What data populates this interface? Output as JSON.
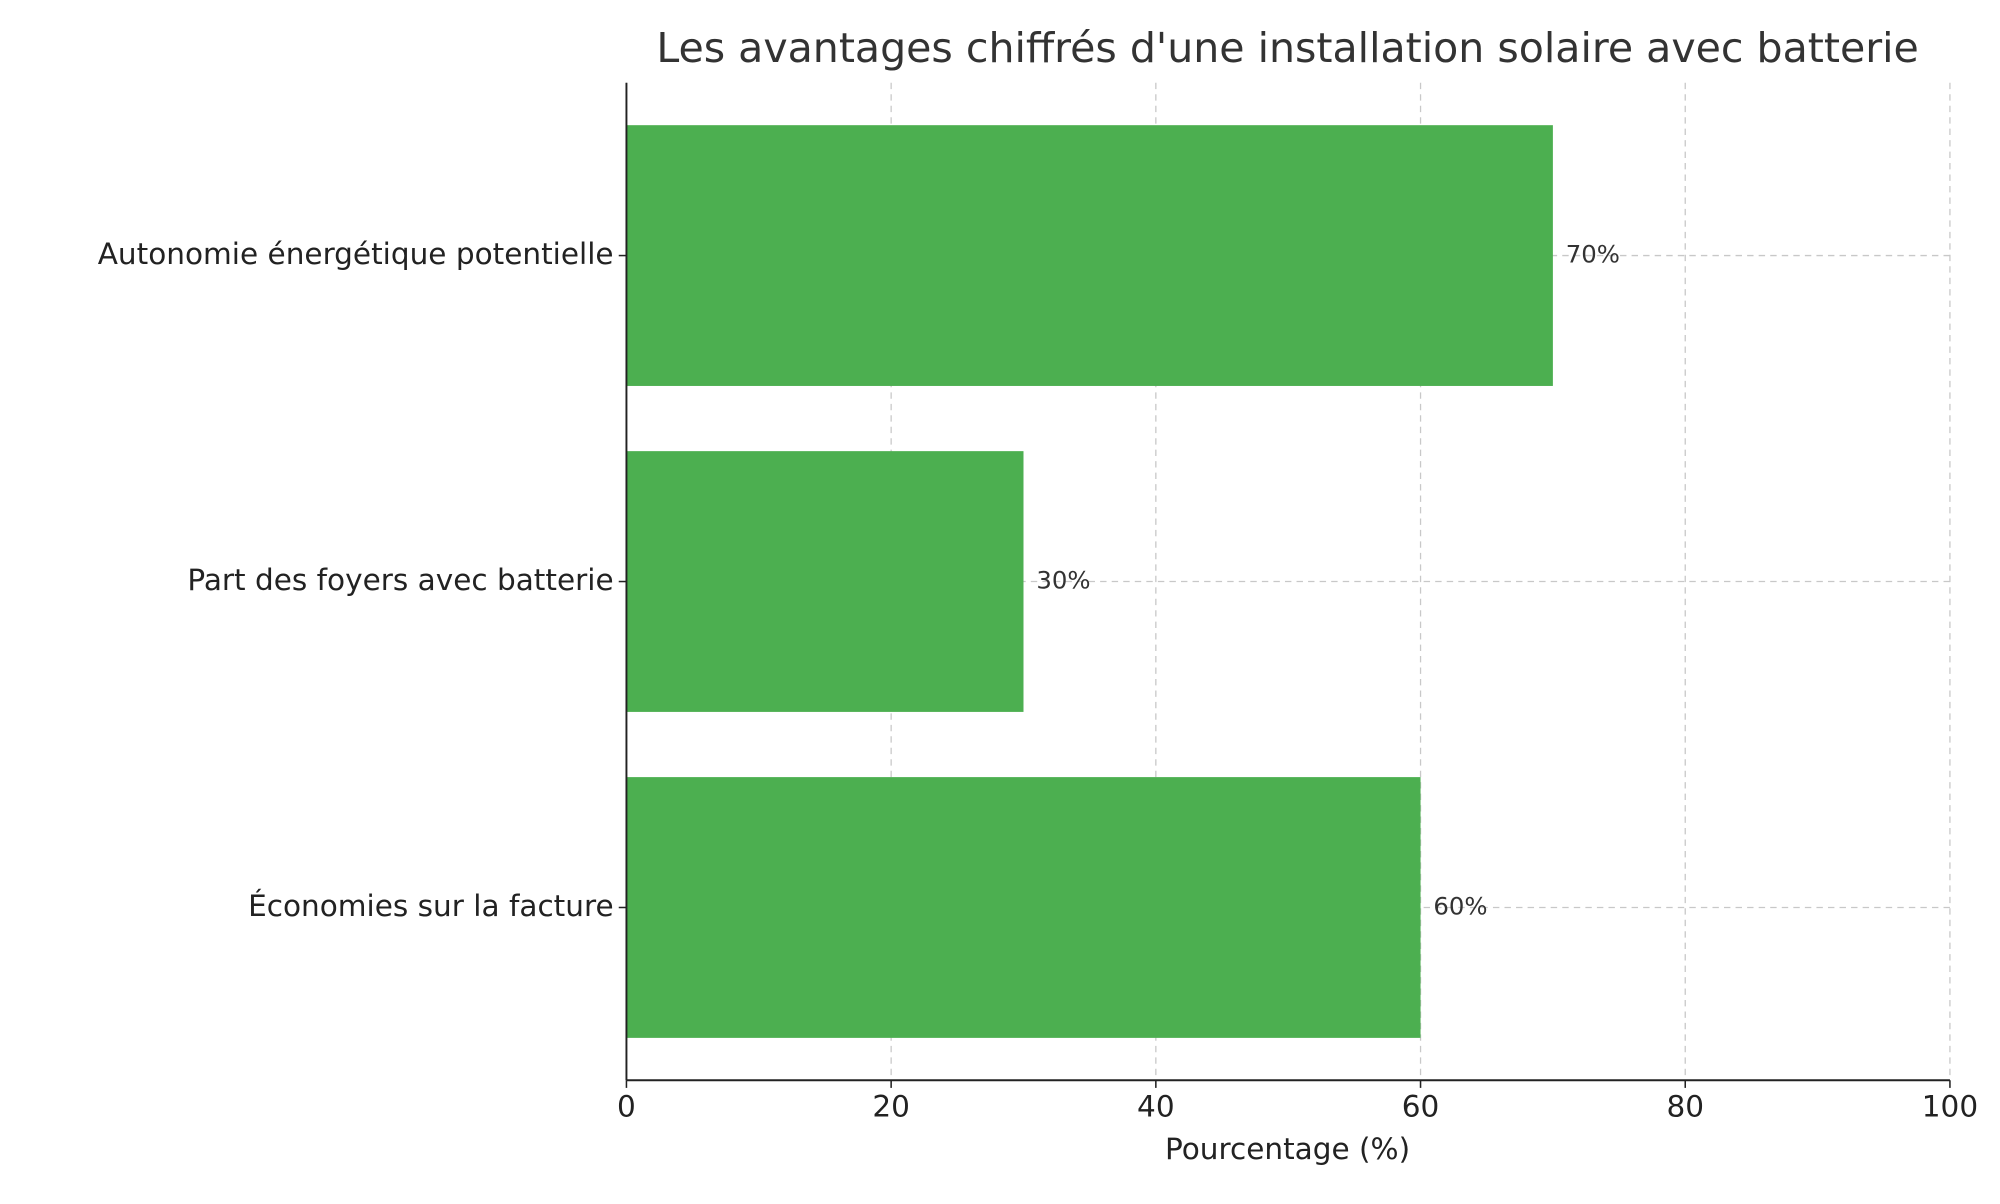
{
  "chart_data": {
    "type": "barh",
    "title": "Les avantages chiffrés d'une installation solaire avec batterie",
    "xlabel": "Pourcentage (%)",
    "categories": [
      "Économies sur la facture",
      "Part des foyers avec batterie",
      "Autonomie énergétique potentielle"
    ],
    "values": [
      60,
      30,
      70
    ],
    "value_labels": [
      "60%",
      "30%",
      "70%"
    ],
    "color": "#4caf50",
    "xlim": [
      0,
      100
    ],
    "xticks": [
      0,
      20,
      40,
      60,
      80,
      100
    ],
    "grid": true
  }
}
